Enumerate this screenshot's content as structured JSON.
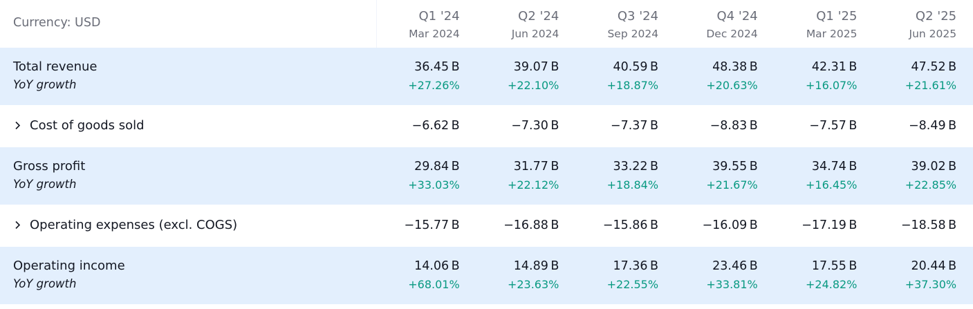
{
  "header": {
    "currency_label": "Currency: USD",
    "periods": [
      {
        "quarter": "Q1 '24",
        "date": "Mar 2024"
      },
      {
        "quarter": "Q2 '24",
        "date": "Jun 2024"
      },
      {
        "quarter": "Q3 '24",
        "date": "Sep 2024"
      },
      {
        "quarter": "Q4 '24",
        "date": "Dec 2024"
      },
      {
        "quarter": "Q1 '25",
        "date": "Mar 2025"
      },
      {
        "quarter": "Q2 '25",
        "date": "Jun 2025"
      }
    ]
  },
  "rows": {
    "total_revenue": {
      "label": "Total revenue",
      "sub_label": "YoY growth",
      "values": [
        "36.45 B",
        "39.07 B",
        "40.59 B",
        "48.38 B",
        "42.31 B",
        "47.52 B"
      ],
      "growth": [
        "+27.26%",
        "+22.10%",
        "+18.87%",
        "+20.63%",
        "+16.07%",
        "+21.61%"
      ]
    },
    "cogs": {
      "label": "Cost of goods sold",
      "values": [
        "−6.62 B",
        "−7.30 B",
        "−7.37 B",
        "−8.83 B",
        "−7.57 B",
        "−8.49 B"
      ]
    },
    "gross_profit": {
      "label": "Gross profit",
      "sub_label": "YoY growth",
      "values": [
        "29.84 B",
        "31.77 B",
        "33.22 B",
        "39.55 B",
        "34.74 B",
        "39.02 B"
      ],
      "growth": [
        "+33.03%",
        "+22.12%",
        "+18.84%",
        "+21.67%",
        "+16.45%",
        "+22.85%"
      ]
    },
    "opex": {
      "label": "Operating expenses (excl. COGS)",
      "values": [
        "−15.77 B",
        "−16.88 B",
        "−15.86 B",
        "−16.09 B",
        "−17.19 B",
        "−18.58 B"
      ]
    },
    "operating_income": {
      "label": "Operating income",
      "sub_label": "YoY growth",
      "values": [
        "14.06 B",
        "14.89 B",
        "17.36 B",
        "23.46 B",
        "17.55 B",
        "20.44 B"
      ],
      "growth": [
        "+68.01%",
        "+23.63%",
        "+22.55%",
        "+33.81%",
        "+24.82%",
        "+37.30%"
      ]
    }
  },
  "colors": {
    "band_background": "#e3effd",
    "positive_growth": "#089981",
    "header_text": "#6a6d78",
    "body_text": "#131722"
  },
  "icons": {
    "expander": "chevron-right-icon"
  }
}
